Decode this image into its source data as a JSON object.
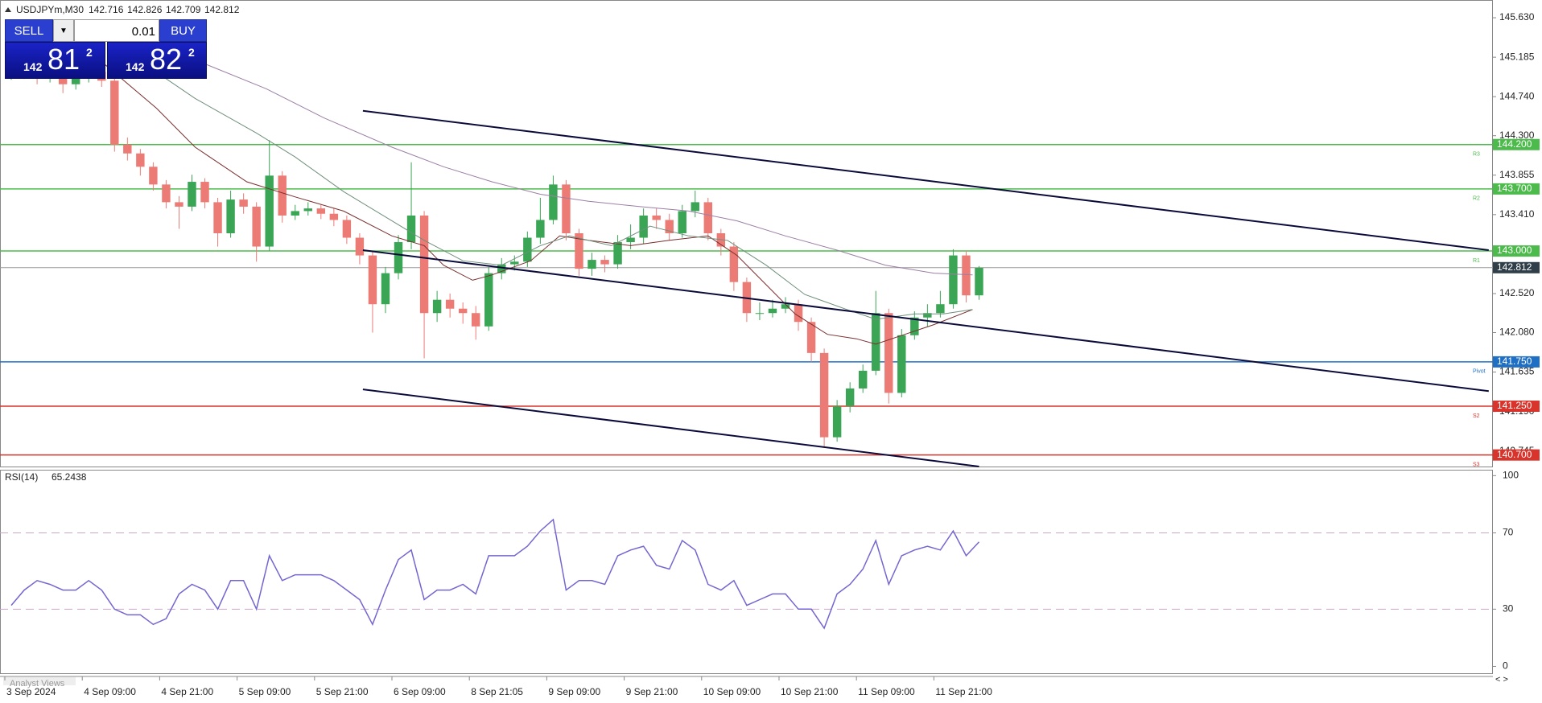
{
  "header": {
    "symbol": "USDJPYm,M30",
    "ohlc": [
      142.716,
      142.826,
      142.709,
      142.812
    ]
  },
  "trade_panel": {
    "sell": "SELL",
    "buy": "BUY",
    "volume": "0.01",
    "bid": {
      "big": "142",
      "main": "81",
      "sup": "2"
    },
    "ask": {
      "big": "142",
      "main": "82",
      "sup": "2"
    }
  },
  "footer_tab": "Analyst Views",
  "chart_data": [
    {
      "type": "candlestick",
      "up_color": "#3aa655",
      "down_color": "#ec7b76",
      "xlim": [
        -1.5,
        461.3
      ],
      "ylim": [
        140.57,
        145.83
      ],
      "yticks": [
        {
          "value": 145.63,
          "label": "145.630"
        },
        145.185,
        {
          "value": 144.74,
          "label": "144.740"
        },
        {
          "value": 144.3,
          "label": "144.300"
        },
        143.855,
        {
          "value": 143.41,
          "label": "143.410"
        },
        {
          "value": 142.52,
          "label": "142.520"
        },
        {
          "value": 142.08,
          "label": "142.080"
        },
        141.635,
        {
          "value": 141.19,
          "label": "141.190"
        },
        140.745
      ],
      "x": [
        2,
        6,
        10,
        14,
        18,
        22,
        26,
        30,
        34,
        38,
        42,
        46,
        50,
        54,
        58,
        62,
        66,
        70,
        74,
        78,
        82,
        86,
        90,
        94,
        98,
        102,
        106,
        110,
        114,
        118,
        122,
        126,
        130,
        134,
        138,
        142,
        146,
        150,
        154,
        158,
        162,
        166,
        170,
        174,
        178,
        182,
        186,
        190,
        194,
        198,
        202,
        206,
        210,
        214,
        218,
        222,
        226,
        230,
        234,
        238,
        242,
        246,
        250,
        254,
        258,
        262,
        266,
        270,
        274,
        278,
        282,
        286,
        290,
        294,
        298,
        302
      ],
      "open": [
        145.0,
        145.05,
        145.0,
        144.95,
        144.98,
        144.88,
        144.95,
        145.02,
        144.92,
        144.2,
        144.1,
        143.95,
        143.75,
        143.55,
        143.5,
        143.78,
        143.55,
        143.2,
        143.58,
        143.5,
        143.05,
        143.85,
        143.4,
        143.45,
        143.48,
        143.42,
        143.35,
        143.15,
        142.95,
        142.4,
        142.75,
        143.1,
        143.4,
        142.3,
        142.45,
        142.35,
        142.3,
        142.15,
        142.75,
        142.85,
        142.88,
        143.15,
        143.35,
        143.75,
        143.2,
        142.8,
        142.9,
        142.85,
        143.1,
        143.15,
        143.4,
        143.35,
        143.2,
        143.45,
        143.55,
        143.2,
        143.05,
        142.65,
        142.3,
        142.3,
        142.35,
        142.4,
        142.2,
        141.85,
        140.9,
        141.25,
        141.45,
        141.65,
        142.3,
        141.4,
        142.05,
        142.25,
        142.3,
        142.4,
        142.95,
        142.5
      ],
      "high": [
        145.12,
        145.1,
        145.05,
        145.05,
        145.02,
        145.0,
        145.1,
        145.08,
        144.95,
        144.28,
        144.15,
        144.0,
        143.8,
        143.62,
        143.86,
        143.82,
        143.6,
        143.68,
        143.65,
        143.55,
        144.25,
        143.9,
        143.52,
        143.55,
        143.52,
        143.48,
        143.4,
        143.2,
        143.0,
        142.82,
        143.18,
        144.0,
        143.45,
        142.55,
        142.52,
        142.42,
        142.38,
        142.82,
        142.92,
        142.95,
        143.22,
        143.6,
        143.85,
        143.8,
        143.25,
        142.98,
        142.95,
        143.18,
        143.3,
        143.48,
        143.48,
        143.42,
        143.52,
        143.68,
        143.6,
        143.25,
        143.1,
        142.7,
        142.42,
        142.45,
        142.48,
        142.45,
        142.25,
        141.9,
        141.32,
        141.52,
        141.72,
        142.55,
        142.35,
        142.12,
        142.32,
        142.4,
        142.55,
        143.02,
        143.0,
        142.83
      ],
      "low": [
        144.93,
        144.94,
        144.88,
        144.9,
        144.78,
        144.82,
        144.9,
        144.85,
        144.12,
        144.02,
        143.85,
        143.68,
        143.48,
        143.25,
        143.45,
        143.48,
        143.05,
        143.15,
        143.42,
        142.88,
        143.0,
        143.32,
        143.35,
        143.4,
        143.36,
        143.28,
        143.08,
        142.85,
        142.08,
        142.3,
        142.68,
        143.02,
        141.79,
        142.2,
        142.25,
        142.18,
        142.0,
        142.1,
        142.68,
        142.78,
        142.82,
        143.08,
        143.3,
        143.12,
        142.72,
        142.72,
        142.76,
        142.8,
        143.02,
        143.08,
        143.25,
        143.12,
        143.15,
        143.38,
        143.12,
        142.95,
        142.55,
        142.2,
        142.22,
        142.25,
        142.3,
        142.1,
        141.75,
        140.78,
        140.85,
        141.18,
        141.4,
        141.6,
        141.28,
        141.35,
        142.0,
        142.15,
        142.25,
        142.35,
        142.42,
        142.45
      ],
      "close": [
        145.05,
        145.0,
        144.95,
        144.98,
        144.88,
        144.95,
        145.02,
        144.92,
        144.2,
        144.1,
        143.95,
        143.75,
        143.55,
        143.5,
        143.78,
        143.55,
        143.2,
        143.58,
        143.5,
        143.05,
        143.85,
        143.4,
        143.45,
        143.48,
        143.42,
        143.35,
        143.15,
        142.95,
        142.4,
        142.75,
        143.1,
        143.4,
        142.3,
        142.45,
        142.35,
        142.3,
        142.15,
        142.75,
        142.85,
        142.88,
        143.15,
        143.35,
        143.75,
        143.2,
        142.8,
        142.9,
        142.85,
        143.1,
        143.15,
        143.4,
        143.35,
        143.2,
        143.45,
        143.55,
        143.2,
        143.05,
        142.65,
        142.3,
        142.3,
        142.35,
        142.4,
        142.2,
        141.85,
        140.9,
        141.25,
        141.45,
        141.65,
        142.3,
        141.4,
        142.05,
        142.25,
        142.3,
        142.4,
        142.95,
        142.5,
        142.81
      ],
      "indicators": [
        {
          "color": "#7a2e2e",
          "x": [
            29,
            47,
            59,
            75,
            90,
            105,
            120,
            130,
            136,
            145,
            151,
            163,
            172,
            181,
            194,
            206,
            218,
            227,
            236,
            245,
            255,
            264,
            270,
            279,
            288,
            300
          ],
          "values": [
            145.165,
            144.61,
            144.17,
            143.78,
            143.61,
            143.45,
            143.17,
            143.06,
            142.84,
            142.67,
            142.73,
            142.89,
            143.17,
            143.12,
            143.06,
            143.12,
            143.17,
            142.95,
            142.62,
            142.29,
            142.06,
            142.01,
            141.95,
            142.06,
            142.17,
            142.34
          ]
        },
        {
          "color": "#6f8f7b",
          "x": [
            41,
            59,
            78,
            90,
            105,
            120,
            130,
            142,
            154,
            166,
            175,
            188,
            200,
            212,
            224,
            236,
            248,
            261,
            270,
            282,
            291,
            300
          ],
          "values": [
            145.165,
            144.72,
            144.33,
            144.06,
            143.67,
            143.34,
            143.12,
            142.89,
            142.84,
            143.06,
            143.17,
            143.06,
            143.28,
            143.17,
            143.12,
            142.84,
            142.51,
            142.34,
            142.23,
            142.29,
            142.29,
            142.34
          ]
        },
        {
          "color": "#9b7fa4",
          "x": [
            62,
            81,
            99,
            120,
            136,
            151,
            166,
            181,
            197,
            212,
            227,
            242,
            258,
            273,
            288,
            300
          ],
          "values": [
            145.11,
            144.83,
            144.5,
            144.17,
            143.95,
            143.78,
            143.64,
            143.56,
            143.5,
            143.45,
            143.34,
            143.17,
            143.01,
            142.84,
            142.75,
            142.73
          ]
        }
      ],
      "trendlines": [
        {
          "color": "#0b0b3b",
          "x": [
            111,
            460
          ],
          "values": [
            144.58,
            143.01
          ]
        },
        {
          "color": "#0b0b3b",
          "x": [
            111,
            460
          ],
          "values": [
            143.01,
            141.42
          ]
        },
        {
          "color": "#0b0b3b",
          "x": [
            111,
            302
          ],
          "values": [
            141.44,
            140.57
          ]
        }
      ],
      "levels": [
        {
          "value": 144.2,
          "label": "144.200",
          "tag": "R3",
          "color": "#4cbb4c"
        },
        {
          "value": 143.7,
          "label": "143.700",
          "tag": "R2",
          "color": "#4cbb4c"
        },
        {
          "value": 143.0,
          "label": "143.000",
          "tag": "R1",
          "color": "#4cbb4c"
        },
        {
          "value": 141.75,
          "label": "141.750",
          "tag": "Pivot",
          "color": "#1f6fc5"
        },
        {
          "value": 141.25,
          "label": "141.250",
          "tag": "S2",
          "color": "#d9342b"
        },
        {
          "value": 140.7,
          "label": "140.700",
          "tag": "S3",
          "color": "#d9342b"
        }
      ],
      "current_price": {
        "value": 142.812,
        "label": "142.812",
        "color": "#2f3e48"
      }
    },
    {
      "type": "line",
      "title": "RSI(14)",
      "current": 65.2438,
      "color": "#7466d0",
      "xlim": [
        -1.5,
        461.3
      ],
      "ylim": [
        -3.6,
        103.1
      ],
      "yticks": [
        100,
        70,
        30,
        0
      ],
      "levels": [
        70,
        30
      ],
      "xticks": [
        {
          "value": 0,
          "label": "3 Sep 2024"
        },
        {
          "value": 24,
          "label": "4 Sep 09:00"
        },
        {
          "value": 48,
          "label": "4 Sep 21:00"
        },
        {
          "value": 72,
          "label": "5 Sep 09:00"
        },
        {
          "value": 96,
          "label": "5 Sep 21:00"
        },
        {
          "value": 120,
          "label": "6 Sep 09:00"
        },
        {
          "value": 144,
          "label": "8 Sep 21:05"
        },
        {
          "value": 168,
          "label": "9 Sep 09:00"
        },
        {
          "value": 192,
          "label": "9 Sep 21:00"
        },
        {
          "value": 216,
          "label": "10 Sep 09:00"
        },
        {
          "value": 240,
          "label": "10 Sep 21:00"
        },
        {
          "value": 264,
          "label": "11 Sep 09:00"
        },
        {
          "value": 288,
          "label": "11 Sep 21:00"
        }
      ],
      "x": [
        2,
        6,
        10,
        14,
        18,
        22,
        26,
        30,
        34,
        38,
        42,
        46,
        50,
        54,
        58,
        62,
        66,
        70,
        74,
        78,
        82,
        86,
        90,
        94,
        98,
        102,
        106,
        110,
        114,
        118,
        122,
        126,
        130,
        134,
        138,
        142,
        146,
        150,
        154,
        158,
        162,
        166,
        170,
        174,
        178,
        182,
        186,
        190,
        194,
        198,
        202,
        206,
        210,
        214,
        218,
        222,
        226,
        230,
        234,
        238,
        242,
        246,
        250,
        254,
        258,
        262,
        266,
        270,
        274,
        278,
        282,
        286,
        290,
        294,
        298,
        302
      ],
      "values": [
        32,
        40,
        45,
        43,
        40,
        40,
        45,
        40,
        30,
        27,
        27,
        22,
        25,
        38,
        43,
        40,
        30,
        45,
        45,
        30,
        58,
        45,
        48,
        48,
        48,
        45,
        40,
        35,
        22,
        40,
        56,
        61,
        35,
        40,
        40,
        43,
        38,
        58,
        58,
        58,
        63,
        71,
        77,
        40,
        45,
        45,
        43,
        58,
        61,
        63,
        53,
        51,
        66,
        61,
        43,
        40,
        45,
        32,
        35,
        38,
        38,
        30,
        30,
        20,
        38,
        43,
        51,
        66,
        43,
        58,
        61,
        63,
        61,
        71,
        58,
        65.24
      ]
    }
  ]
}
